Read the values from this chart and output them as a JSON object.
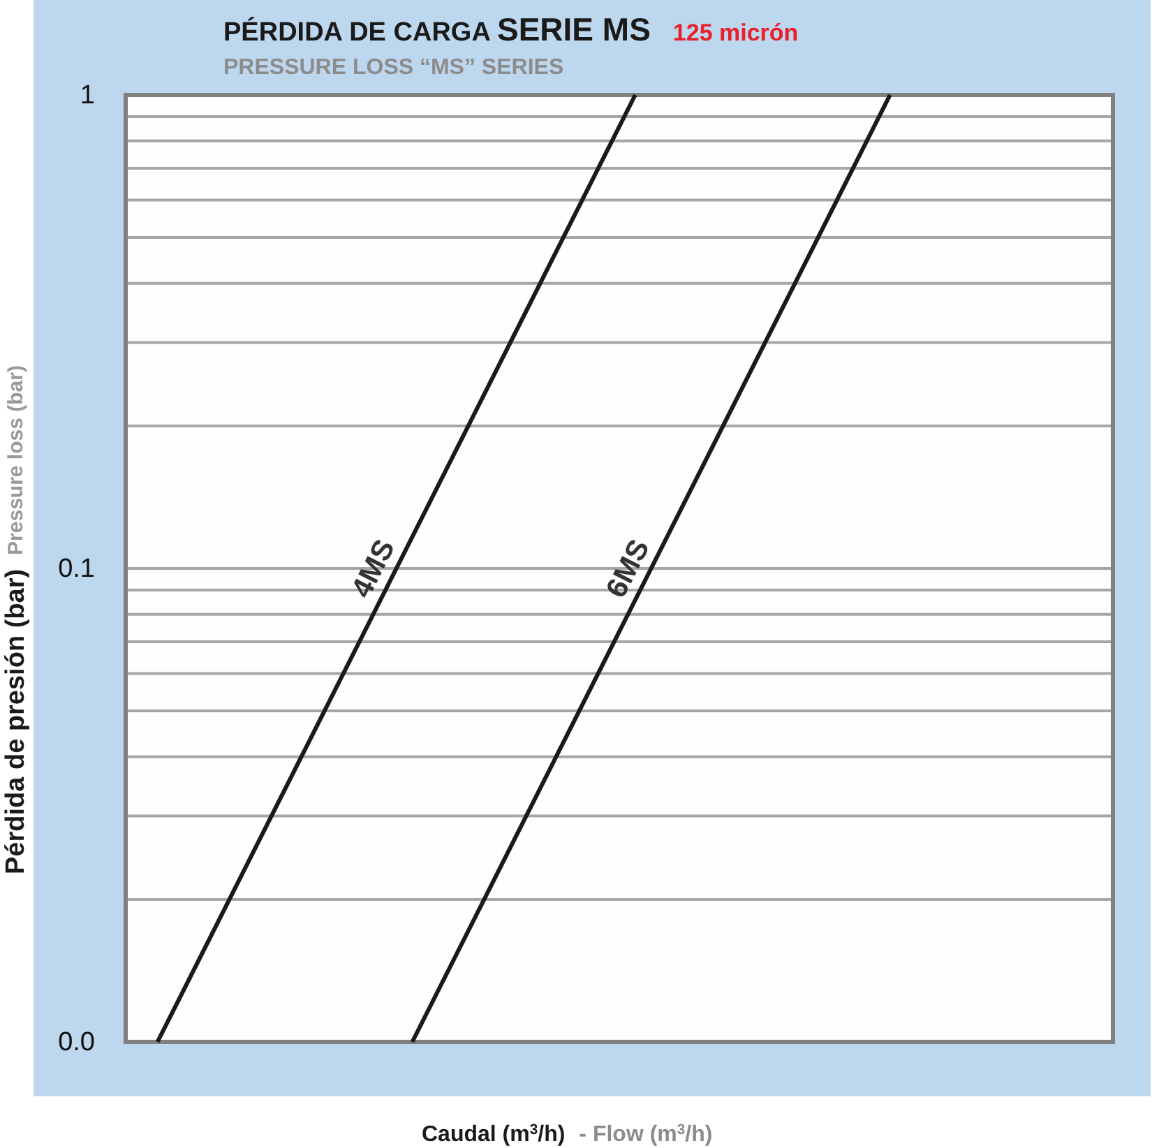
{
  "chart_data": {
    "type": "line",
    "title": "PÉRDIDA DE CARGA SERIE MS",
    "subtitle": "PRESSURE LOSS “MS” SERIES",
    "xlabel": "Caudal (m$^{3}$/h)",
    "ylabel": "Pérdida de presión (bar)",
    "annotations": [
      "125 micrón",
      "-  Flow (m$^{3}$/h)",
      "Pressure loss (bar)"
    ],
    "categories": [
      null,
      null,
      null,
      null,
      null,
      null,
      null,
      null,
      null,
      null,
      null,
      null,
      null,
      null,
      null,
      null,
      null,
      null,
      null,
      null,
      null,
      null,
      null,
      null,
      null,
      null,
      null,
      null,
      null,
      null,
      null,
      null,
      null,
      null,
      null,
      null,
      null,
      null,
      null,
      null,
      null,
      null,
      null,
      null,
      null,
      null,
      null,
      null,
      null,
      null,
      null,
      null,
      null,
      null,
      null,
      null,
      null,
      null,
      null,
      null,
      null,
      null,
      null
    ],
    "series": [
      {
        "name": "4MS",
        "color": "#1a1a1a",
        "values": [
          null,
          null,
          0.01,
          null,
          null,
          null,
          null,
          null,
          null,
          null,
          null,
          null,
          null,
          null,
          null,
          null,
          null,
          null,
          null,
          null,
          null,
          null,
          null,
          null,
          null,
          null,
          null,
          null,
          null,
          null,
          null,
          null,
          1,
          null,
          null,
          null,
          null,
          null,
          null,
          null,
          null,
          null,
          null,
          null,
          null,
          null,
          null,
          null,
          null,
          null,
          null,
          null,
          null,
          null,
          null,
          null,
          null,
          null,
          null,
          null,
          null,
          null,
          null
        ]
      },
      {
        "name": "6MS",
        "color": "#1a1a1a",
        "values": [
          null,
          null,
          null,
          null,
          null,
          null,
          null,
          null,
          null,
          null,
          null,
          null,
          null,
          null,
          null,
          null,
          null,
          null,
          0.01,
          null,
          null,
          null,
          null,
          null,
          null,
          null,
          null,
          null,
          null,
          null,
          null,
          null,
          null,
          null,
          null,
          null,
          null,
          null,
          null,
          null,
          null,
          null,
          null,
          null,
          null,
          null,
          null,
          null,
          1,
          null,
          null,
          null,
          null,
          null,
          null,
          null,
          null,
          null,
          null,
          null,
          null,
          null,
          null
        ]
      }
    ],
    "log": "y",
    "ylim": [
      0.01,
      1
    ],
    "yticks": [
      {
        "value": 0.01,
        "label": "0.0"
      },
      {
        "value": 0.02,
        "label": null
      },
      {
        "value": 0.03,
        "label": null
      },
      {
        "value": 0.04,
        "label": null
      },
      {
        "value": 0.05,
        "label": null
      },
      {
        "value": 0.06,
        "label": null
      },
      {
        "value": 0.07,
        "label": null
      },
      {
        "value": 0.08,
        "label": null
      },
      {
        "value": 0.09,
        "label": null
      },
      0.1,
      {
        "value": 0.2,
        "label": null
      },
      {
        "value": 0.3,
        "label": null
      },
      {
        "value": 0.4,
        "label": null
      },
      {
        "value": 0.5,
        "label": null
      },
      {
        "value": 0.6,
        "label": null
      },
      {
        "value": 0.7,
        "label": null
      },
      {
        "value": 0.8,
        "label": null
      },
      {
        "value": 0.9,
        "label": null
      },
      1
    ],
    "grid": "y",
    "legend": false,
    "marker": "none",
    "line_style": "solid"
  }
}
